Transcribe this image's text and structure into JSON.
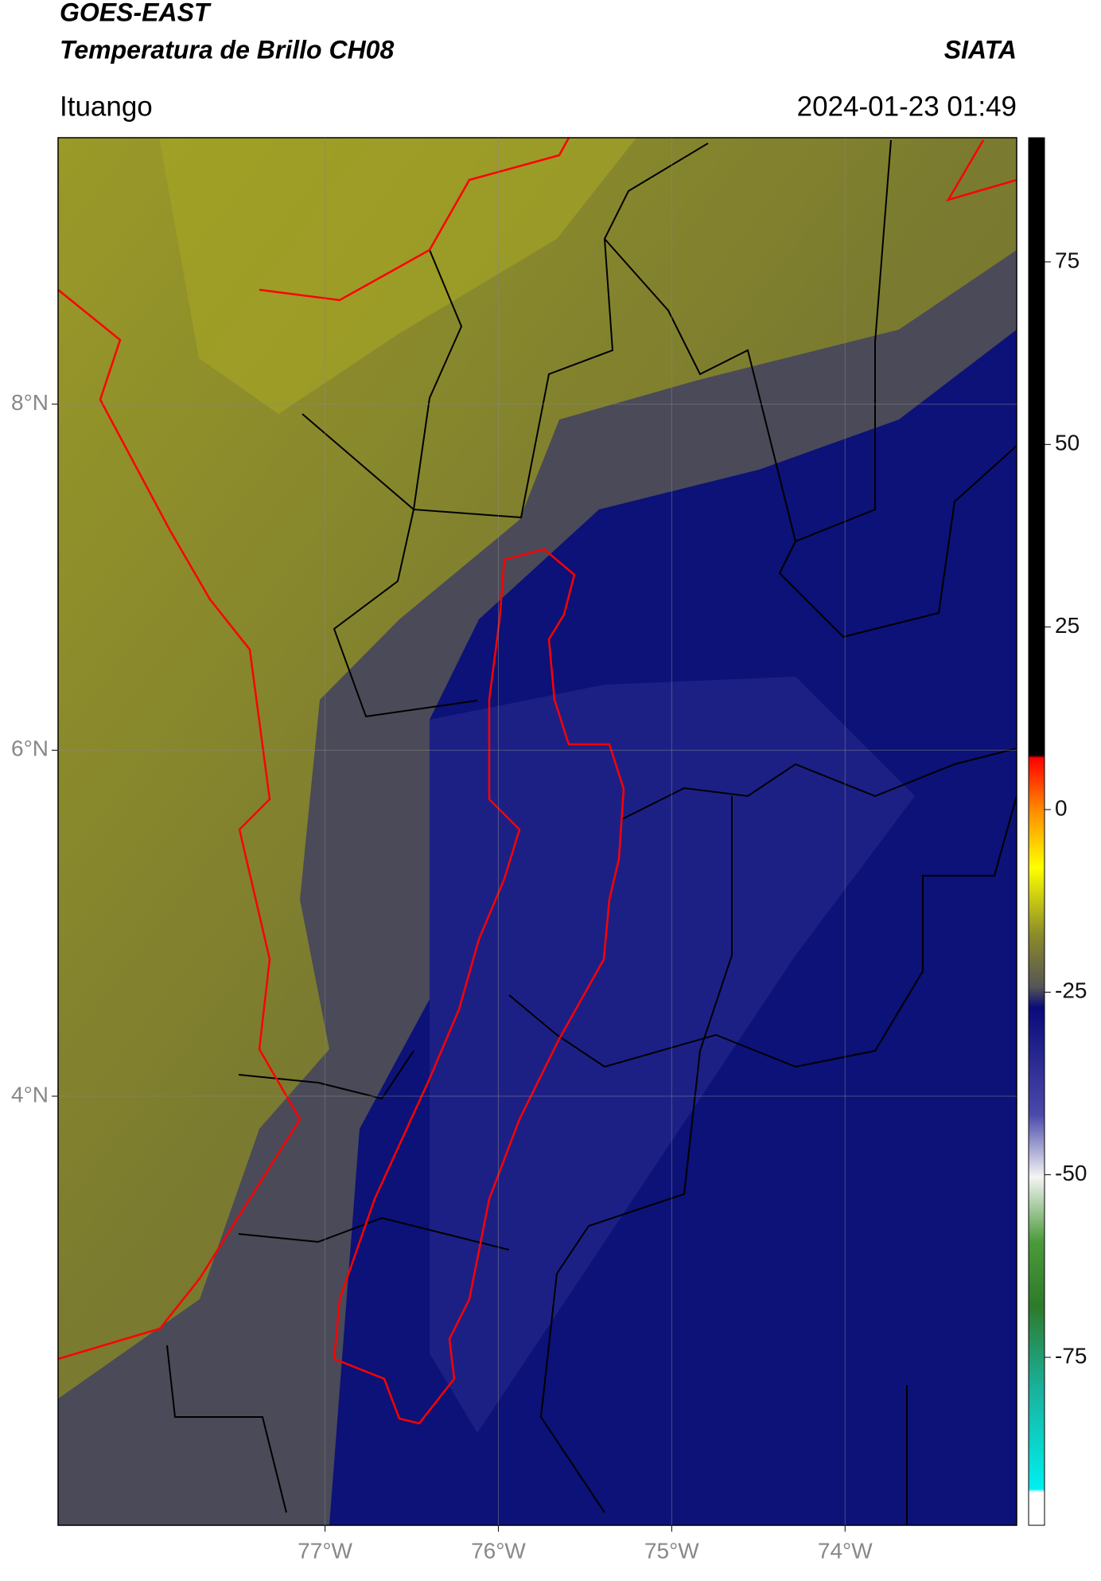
{
  "header": {
    "title": "GOES-EAST",
    "subtitle": "Temperatura de Brillo CH08",
    "brand": "SIATA",
    "location": "Ituango",
    "datetime": "2024-01-23 01:49"
  },
  "map": {
    "xlim": [
      -78.54,
      -73.01
    ],
    "ylim": [
      1.52,
      9.54
    ],
    "xticks": [
      {
        "value": -77,
        "label": "77°W"
      },
      {
        "value": -76,
        "label": "76°W"
      },
      {
        "value": -75,
        "label": "75°W"
      },
      {
        "value": -74,
        "label": "74°W"
      }
    ],
    "yticks": [
      {
        "value": 8,
        "label": "8°N"
      },
      {
        "value": 6,
        "label": "6°N"
      },
      {
        "value": 4,
        "label": "4°N"
      }
    ],
    "grid": true
  },
  "colorbar": {
    "lim": [
      -98,
      92
    ],
    "ticks": [
      75,
      50,
      25,
      0,
      -25,
      -50,
      -75
    ]
  }
}
